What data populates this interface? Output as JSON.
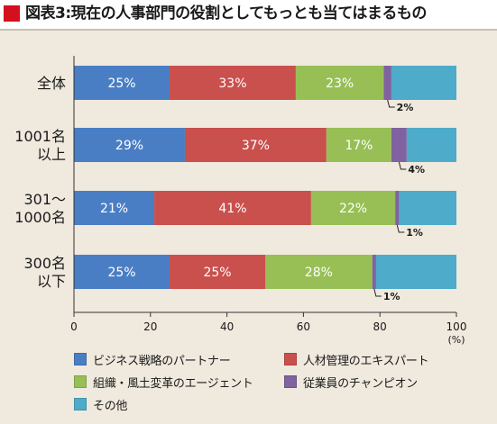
{
  "title": "図表3:現在の人事部門の役割としてもっとも当てはまるもの",
  "colors": {
    "title_square": "#d4101f",
    "series": [
      "#4a7ec4",
      "#c9504d",
      "#97bf55",
      "#8062a1",
      "#4eabc9"
    ]
  },
  "chart_data": {
    "type": "bar",
    "orientation": "horizontal",
    "stacked": true,
    "categories": [
      [
        "全体"
      ],
      [
        "1001名",
        "以上"
      ],
      [
        "301～",
        "1000名"
      ],
      [
        "300名",
        "以下"
      ]
    ],
    "series": [
      {
        "name": "ビジネス戦略のパートナー",
        "values": [
          25,
          29,
          21,
          25
        ]
      },
      {
        "name": "人材管理のエキスパート",
        "values": [
          33,
          37,
          41,
          25
        ]
      },
      {
        "name": "組織・風土変革のエージェント",
        "values": [
          23,
          17,
          22,
          28
        ]
      },
      {
        "name": "従業員のチャンピオン",
        "values": [
          2,
          4,
          1,
          1
        ]
      },
      {
        "name": "その他",
        "values": [
          17,
          13,
          15,
          21
        ]
      }
    ],
    "data_labels": [
      [
        "25%",
        "33%",
        "23%",
        "2%",
        ""
      ],
      [
        "29%",
        "37%",
        "17%",
        "4%",
        ""
      ],
      [
        "21%",
        "41%",
        "22%",
        "1%",
        ""
      ],
      [
        "25%",
        "25%",
        "28%",
        "1%",
        ""
      ]
    ],
    "xlim": [
      0,
      100
    ],
    "x_ticks": [
      "0",
      "20",
      "40",
      "60",
      "80",
      "100"
    ],
    "x_unit": "(%)",
    "grid": false,
    "legend_position": "bottom"
  },
  "legend": {
    "items": [
      {
        "label": "ビジネス戦略のパートナー",
        "color": "#4a7ec4"
      },
      {
        "label": "人材管理のエキスパート",
        "color": "#c9504d"
      },
      {
        "label": "組織・風土変革のエージェント",
        "color": "#97bf55"
      },
      {
        "label": "従業員のチャンピオン",
        "color": "#8062a1"
      },
      {
        "label": "その他",
        "color": "#4eabc9"
      }
    ]
  }
}
